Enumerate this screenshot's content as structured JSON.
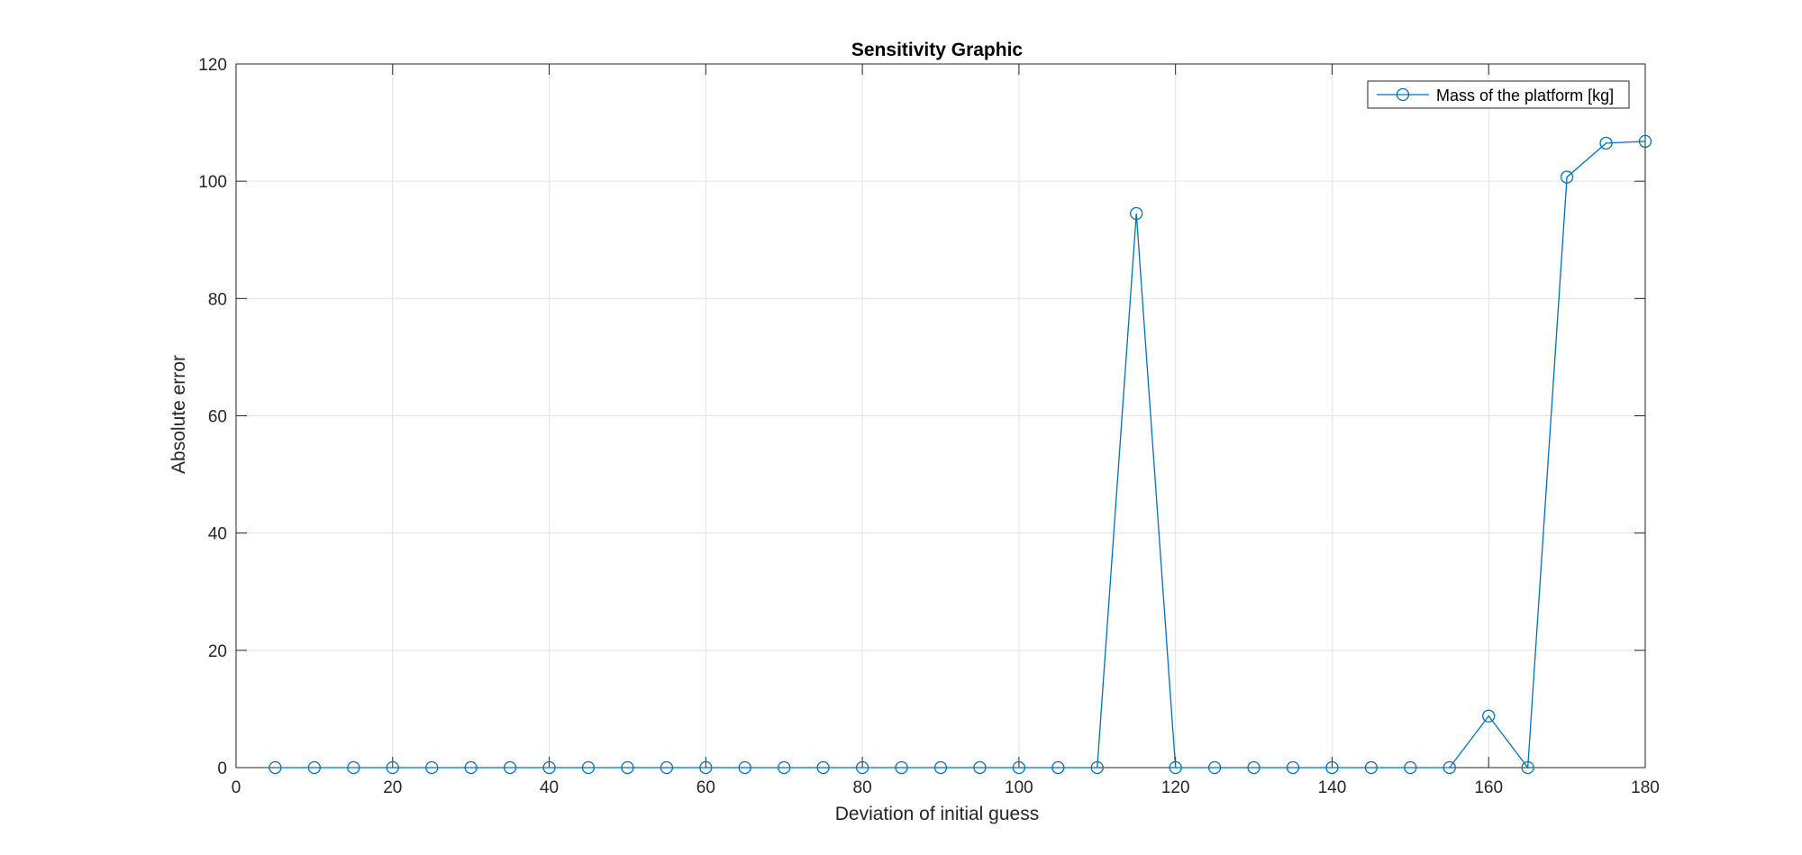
{
  "chart_data": {
    "type": "line",
    "title": "Sensitivity Graphic",
    "xlabel": "Deviation of initial guess",
    "ylabel": "Absolute error",
    "xlim": [
      0,
      180
    ],
    "ylim": [
      0,
      120
    ],
    "xticks": [
      0,
      20,
      40,
      60,
      80,
      100,
      120,
      140,
      160,
      180
    ],
    "yticks": [
      0,
      20,
      40,
      60,
      80,
      100,
      120
    ],
    "grid": true,
    "legend_position": "top-right",
    "series": [
      {
        "name": "Mass of the platform [kg]",
        "color": "#0072BD",
        "marker": "circle",
        "x": [
          5,
          10,
          15,
          20,
          25,
          30,
          35,
          40,
          45,
          50,
          55,
          60,
          65,
          70,
          75,
          80,
          85,
          90,
          95,
          100,
          105,
          110,
          115,
          120,
          125,
          130,
          135,
          140,
          145,
          150,
          155,
          160,
          165,
          170,
          175,
          180
        ],
        "y": [
          0,
          0,
          0,
          0,
          0,
          0,
          0,
          0,
          0,
          0,
          0,
          0,
          0,
          0,
          0,
          0,
          0,
          0,
          0,
          0,
          0,
          0,
          94.5,
          0,
          0,
          0,
          0,
          0,
          0,
          0,
          0,
          8.8,
          0,
          100.7,
          106.5,
          106.8
        ]
      }
    ]
  }
}
